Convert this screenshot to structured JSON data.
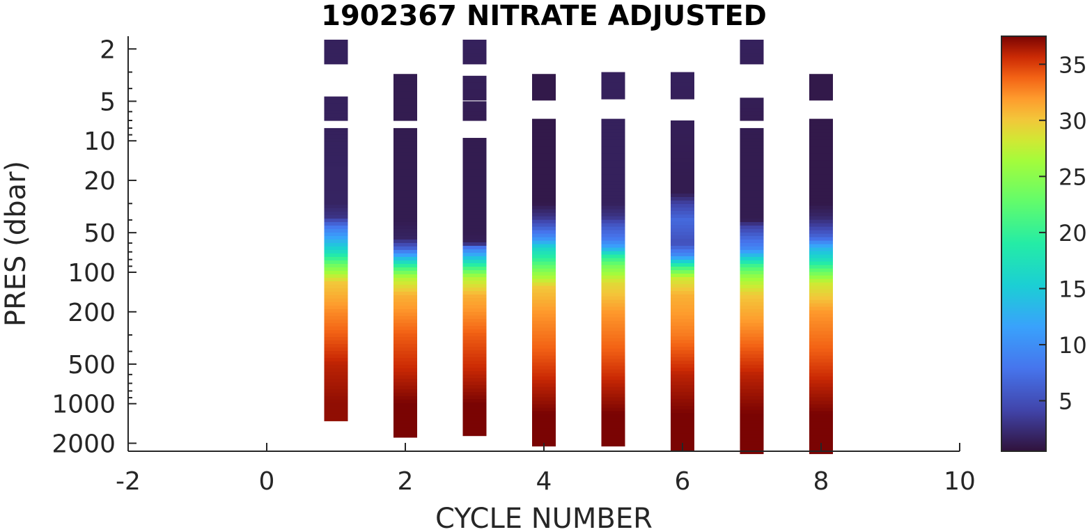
{
  "chart_data": {
    "type": "heatmap",
    "title": "1902367  NITRATE ADJUSTED",
    "xlabel": "CYCLE NUMBER",
    "ylabel": "PRES (dbar)",
    "xlim": [
      -2,
      10
    ],
    "xticks": [
      -2,
      0,
      2,
      4,
      6,
      8,
      10
    ],
    "xtick_labels": [
      "-2",
      "0",
      "2",
      "4",
      "6",
      "8",
      "10"
    ],
    "y_scale": "log",
    "y_reversed": true,
    "ylim": [
      1.6,
      2300
    ],
    "yticks": [
      2,
      5,
      10,
      20,
      50,
      100,
      200,
      500,
      1000,
      2000
    ],
    "ytick_labels": [
      "2",
      "5",
      "10",
      "20",
      "50",
      "100",
      "200",
      "500",
      "1000",
      "2000"
    ],
    "colorbar": {
      "colormap": "turbo",
      "clim": [
        0.5,
        37.5
      ],
      "ticks": [
        5,
        10,
        15,
        20,
        25,
        30,
        35
      ],
      "tick_labels": [
        "5",
        "10",
        "15",
        "20",
        "25",
        "30",
        "35"
      ]
    },
    "grid": false,
    "profiles": [
      {
        "cycle": 1,
        "segments": [
          [
            1.7,
            2.6
          ],
          [
            4.6,
            7.0
          ],
          [
            8.0,
            1350
          ]
        ],
        "profile": [
          [
            1.7,
            1.6
          ],
          [
            8,
            1.6
          ],
          [
            30,
            1.8
          ],
          [
            38,
            3
          ],
          [
            45,
            8
          ],
          [
            55,
            12
          ],
          [
            70,
            17
          ],
          [
            90,
            24
          ],
          [
            120,
            30
          ],
          [
            200,
            32.5
          ],
          [
            300,
            34
          ],
          [
            500,
            36
          ],
          [
            1000,
            37
          ],
          [
            1350,
            37
          ]
        ]
      },
      {
        "cycle": 2,
        "segments": [
          [
            3.1,
            7.0
          ],
          [
            8.0,
            1800
          ]
        ],
        "profile": [
          [
            3.1,
            1.2
          ],
          [
            40,
            1.2
          ],
          [
            55,
            1.8
          ],
          [
            65,
            6
          ],
          [
            75,
            12
          ],
          [
            90,
            20
          ],
          [
            110,
            27
          ],
          [
            150,
            31
          ],
          [
            300,
            34
          ],
          [
            600,
            36
          ],
          [
            1000,
            37.5
          ],
          [
            1800,
            37.5
          ]
        ]
      },
      {
        "cycle": 3,
        "segments": [
          [
            1.7,
            2.6
          ],
          [
            3.2,
            4.9
          ],
          [
            5.0,
            7.0
          ],
          [
            9.5,
            1750
          ]
        ],
        "profile": [
          [
            1.7,
            1.6
          ],
          [
            10,
            1.2
          ],
          [
            50,
            1.2
          ],
          [
            60,
            1.5
          ],
          [
            65,
            8
          ],
          [
            75,
            13
          ],
          [
            90,
            20
          ],
          [
            110,
            27
          ],
          [
            150,
            31
          ],
          [
            300,
            34
          ],
          [
            600,
            36
          ],
          [
            1000,
            37.5
          ],
          [
            1750,
            37.5
          ]
        ]
      },
      {
        "cycle": 4,
        "segments": [
          [
            3.1,
            4.9
          ],
          [
            6.8,
            2100
          ]
        ],
        "profile": [
          [
            3.1,
            1.0
          ],
          [
            30,
            1.0
          ],
          [
            38,
            3
          ],
          [
            45,
            6
          ],
          [
            55,
            10
          ],
          [
            65,
            16
          ],
          [
            80,
            20
          ],
          [
            100,
            25
          ],
          [
            130,
            30
          ],
          [
            200,
            32
          ],
          [
            400,
            34
          ],
          [
            700,
            36
          ],
          [
            1200,
            37.5
          ],
          [
            2100,
            37.5
          ]
        ]
      },
      {
        "cycle": 5,
        "segments": [
          [
            3.0,
            4.8
          ],
          [
            6.8,
            2100
          ]
        ],
        "profile": [
          [
            3.0,
            1.6
          ],
          [
            30,
            1.6
          ],
          [
            38,
            3
          ],
          [
            45,
            6
          ],
          [
            55,
            8
          ],
          [
            65,
            12
          ],
          [
            75,
            19
          ],
          [
            90,
            24
          ],
          [
            120,
            29
          ],
          [
            200,
            32
          ],
          [
            400,
            34
          ],
          [
            700,
            36
          ],
          [
            1200,
            37.5
          ],
          [
            2100,
            37.5
          ]
        ]
      },
      {
        "cycle": 6,
        "segments": [
          [
            3.0,
            4.8
          ],
          [
            7.0,
            2300
          ]
        ],
        "profile": [
          [
            3.0,
            1.6
          ],
          [
            20,
            1.2
          ],
          [
            25,
            1.2
          ],
          [
            30,
            4
          ],
          [
            40,
            7
          ],
          [
            50,
            6
          ],
          [
            60,
            5
          ],
          [
            75,
            10
          ],
          [
            90,
            20
          ],
          [
            110,
            28
          ],
          [
            150,
            31
          ],
          [
            300,
            33
          ],
          [
            600,
            36
          ],
          [
            1200,
            37.5
          ],
          [
            2300,
            37.5
          ]
        ]
      },
      {
        "cycle": 7,
        "segments": [
          [
            1.7,
            2.6
          ],
          [
            4.7,
            7.0
          ],
          [
            8.0,
            2400
          ]
        ],
        "profile": [
          [
            1.7,
            1.6
          ],
          [
            10,
            1.2
          ],
          [
            40,
            1.2
          ],
          [
            45,
            4
          ],
          [
            55,
            7
          ],
          [
            65,
            9
          ],
          [
            75,
            14
          ],
          [
            90,
            21
          ],
          [
            110,
            26
          ],
          [
            150,
            30
          ],
          [
            300,
            33
          ],
          [
            600,
            36
          ],
          [
            1200,
            37.5
          ],
          [
            2400,
            37.5
          ]
        ]
      },
      {
        "cycle": 8,
        "segments": [
          [
            3.1,
            4.9
          ],
          [
            6.8,
            2400
          ]
        ],
        "profile": [
          [
            3.1,
            1.0
          ],
          [
            30,
            1.0
          ],
          [
            38,
            2
          ],
          [
            45,
            4
          ],
          [
            55,
            7
          ],
          [
            65,
            13
          ],
          [
            80,
            17
          ],
          [
            95,
            22
          ],
          [
            120,
            28
          ],
          [
            200,
            32
          ],
          [
            400,
            34
          ],
          [
            700,
            36
          ],
          [
            1200,
            37.5
          ],
          [
            2400,
            37.5
          ]
        ]
      }
    ]
  }
}
